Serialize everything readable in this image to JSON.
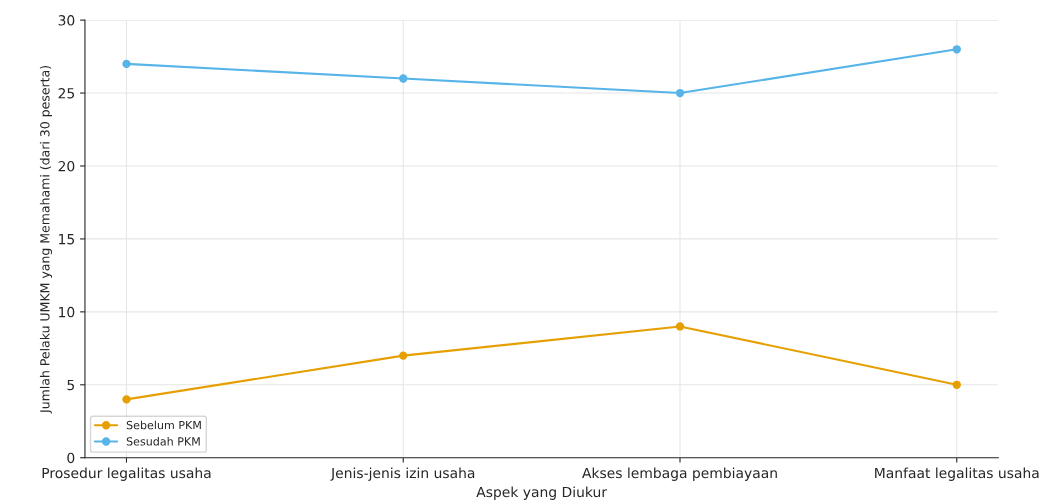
{
  "chart_data": {
    "type": "line",
    "xlabel": "Aspek yang Diukur",
    "ylabel": "Jumlah Pelaku UMKM yang Memahami (dari 30 peserta)",
    "categories": [
      "Prosedur legalitas usaha",
      "Jenis-jenis izin usaha",
      "Akses lembaga pembiayaan",
      "Manfaat legalitas usaha"
    ],
    "series": [
      {
        "name": "Sebelum PKM",
        "color": "#e69f00",
        "values": [
          4,
          7,
          9,
          5
        ]
      },
      {
        "name": "Sesudah PKM",
        "color": "#56b4e9",
        "values": [
          27,
          26,
          25,
          28
        ]
      }
    ],
    "ylim": [
      0,
      30
    ],
    "yticks": [
      0,
      5,
      10,
      15,
      20,
      25,
      30
    ],
    "grid": true,
    "legend": "bottom left",
    "marker": "circle",
    "line_style": "solid"
  }
}
